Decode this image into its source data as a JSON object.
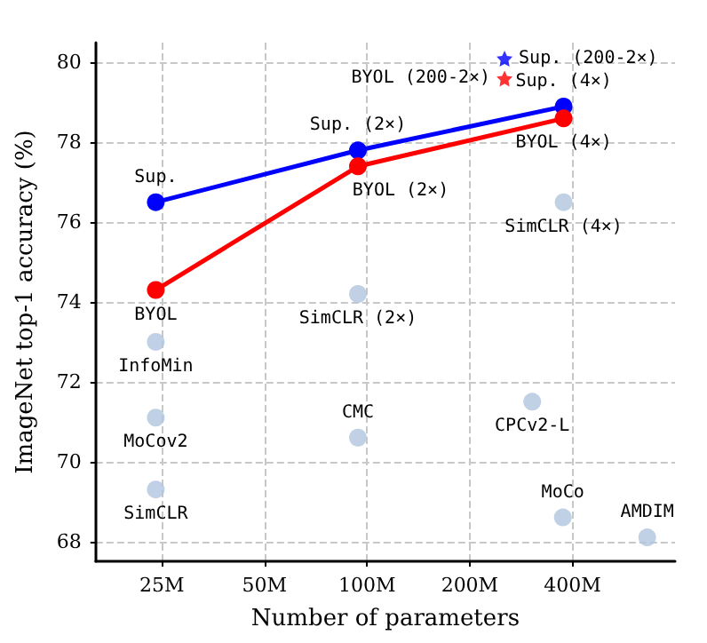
{
  "chart_data": {
    "type": "scatter",
    "xlabel": "Number of parameters",
    "ylabel": "ImageNet top-1 accuracy (%)",
    "log": "x",
    "grid": true,
    "xlim": [
      16,
      800
    ],
    "xticks": [
      {
        "value": 25,
        "label": "25M"
      },
      {
        "value": 50,
        "label": "50M"
      },
      {
        "value": 100,
        "label": "100M"
      },
      {
        "value": 200,
        "label": "200M"
      },
      {
        "value": 400,
        "label": "400M"
      }
    ],
    "ylim": [
      67.5,
      80.5
    ],
    "yticks": [
      68,
      70,
      72,
      74,
      76,
      78,
      80
    ],
    "series": [
      {
        "type": "line",
        "color": "#0000ff",
        "marker": "circle",
        "x": [
          24,
          94,
          377
        ],
        "values": [
          76.5,
          77.8,
          78.9
        ]
      },
      {
        "type": "line",
        "color": "#ff0000",
        "marker": "circle",
        "x": [
          24,
          94,
          377
        ],
        "values": [
          74.3,
          77.4,
          78.6
        ]
      },
      {
        "color": "#0000ff",
        "marker": "star",
        "x": [
          253
        ],
        "values": [
          80.1
        ]
      },
      {
        "color": "#ff0000",
        "marker": "star",
        "x": [
          253
        ],
        "values": [
          79.6
        ]
      },
      {
        "color": "#b0c4de",
        "marker": "circle",
        "x": [
          377,
          94,
          24,
          24,
          24,
          94,
          305,
          375,
          663
        ],
        "values": [
          76.5,
          74.2,
          73.0,
          71.1,
          69.3,
          70.6,
          71.5,
          68.6,
          68.1
        ]
      }
    ],
    "annotations": [
      {
        "text": "Sup.",
        "x": 24,
        "y": 76.5
      },
      {
        "text": "Sup. (2×)",
        "x": 94,
        "y": 77.8
      },
      {
        "text": "Sup. (4×)",
        "x": 377,
        "y": 78.9
      },
      {
        "text": "BYOL",
        "x": 24,
        "y": 74.3
      },
      {
        "text": "BYOL (2×)",
        "x": 94,
        "y": 77.4
      },
      {
        "text": "BYOL (4×)",
        "x": 377,
        "y": 78.6
      },
      {
        "text": "Sup. (200-2×)",
        "x": 253,
        "y": 80.1
      },
      {
        "text": "BYOL (200-2×)",
        "x": 253,
        "y": 79.6
      },
      {
        "text": "SimCLR (4×)",
        "x": 377,
        "y": 76.5
      },
      {
        "text": "SimCLR (2×)",
        "x": 94,
        "y": 74.2
      },
      {
        "text": "InfoMin",
        "x": 24,
        "y": 73.0
      },
      {
        "text": "MoCov2",
        "x": 24,
        "y": 71.1
      },
      {
        "text": "SimCLR",
        "x": 24,
        "y": 69.3
      },
      {
        "text": "CMC",
        "x": 94,
        "y": 70.6
      },
      {
        "text": "CPCv2-L",
        "x": 305,
        "y": 71.5
      },
      {
        "text": "MoCo",
        "x": 375,
        "y": 68.6
      },
      {
        "text": "AMDIM",
        "x": 663,
        "y": 68.1
      }
    ]
  }
}
